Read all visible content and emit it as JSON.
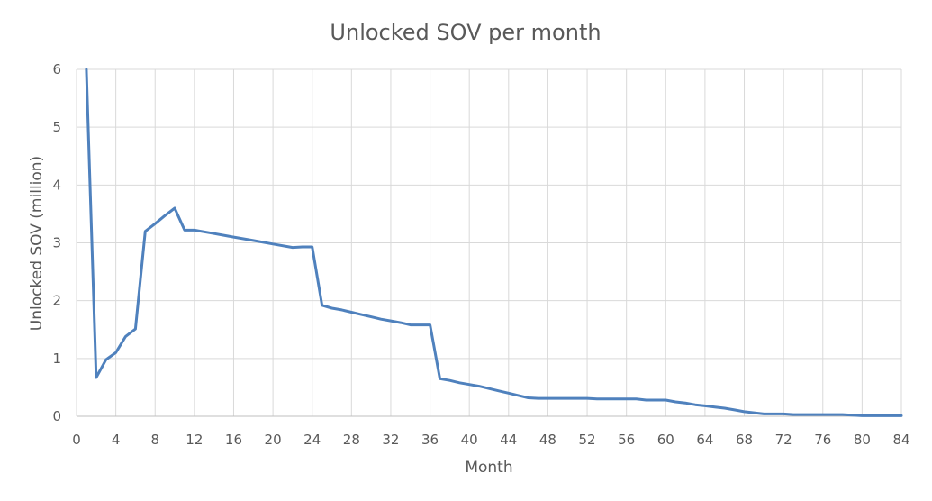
{
  "chart_data": {
    "type": "line",
    "title": "Unlocked SOV per month",
    "xlabel": "Month",
    "ylabel": "Unlocked SOV (million)",
    "xlim": [
      0,
      84
    ],
    "ylim": [
      0,
      6
    ],
    "x_ticks": [
      "0",
      "4",
      "8",
      "12",
      "16",
      "20",
      "24",
      "28",
      "32",
      "36",
      "40",
      "44",
      "48",
      "52",
      "56",
      "60",
      "64",
      "68",
      "72",
      "76",
      "80",
      "84"
    ],
    "y_ticks": [
      "0",
      "1",
      "2",
      "3",
      "4",
      "5",
      "6"
    ],
    "grid": true,
    "legend": "none",
    "color": "#4f81bd",
    "series": [
      {
        "x": [
          1,
          2,
          3,
          4,
          5,
          6,
          7,
          8,
          9,
          10,
          11,
          12,
          14,
          16,
          18,
          20,
          22,
          23,
          24,
          25,
          26,
          27,
          28,
          29,
          30,
          31,
          32,
          33,
          34,
          35,
          36,
          37,
          38,
          39,
          40,
          41,
          42,
          43,
          44,
          45,
          46,
          47,
          48,
          50,
          52,
          53,
          54,
          56,
          57,
          58,
          59,
          60,
          61,
          62,
          63,
          64,
          65,
          66,
          67,
          68,
          69,
          70,
          72,
          73,
          74,
          76,
          78,
          79,
          80,
          82,
          84
        ],
        "values": [
          6.0,
          0.67,
          0.98,
          1.1,
          1.38,
          1.51,
          3.2,
          3.33,
          3.47,
          3.6,
          3.22,
          3.22,
          3.16,
          3.1,
          3.04,
          2.98,
          2.92,
          2.93,
          2.93,
          1.92,
          1.87,
          1.84,
          1.8,
          1.76,
          1.72,
          1.68,
          1.65,
          1.62,
          1.58,
          1.58,
          1.58,
          0.65,
          0.62,
          0.58,
          0.55,
          0.52,
          0.48,
          0.44,
          0.4,
          0.36,
          0.32,
          0.31,
          0.31,
          0.31,
          0.31,
          0.3,
          0.3,
          0.3,
          0.3,
          0.28,
          0.28,
          0.28,
          0.25,
          0.23,
          0.2,
          0.18,
          0.16,
          0.14,
          0.11,
          0.08,
          0.06,
          0.04,
          0.04,
          0.03,
          0.03,
          0.03,
          0.03,
          0.02,
          0.01,
          0.01,
          0.01
        ]
      }
    ]
  }
}
